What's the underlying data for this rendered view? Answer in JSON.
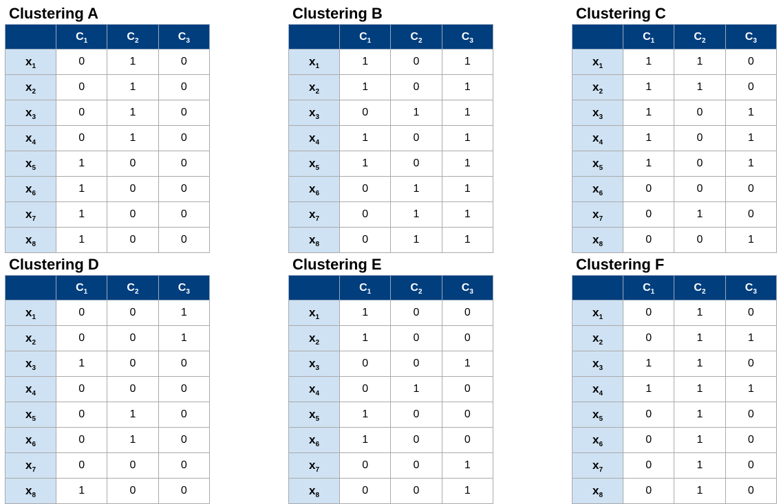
{
  "column_headers": [
    {
      "base": "C",
      "sub": "1"
    },
    {
      "base": "C",
      "sub": "2"
    },
    {
      "base": "C",
      "sub": "3"
    }
  ],
  "row_headers": [
    {
      "base": "x",
      "sub": "1"
    },
    {
      "base": "x",
      "sub": "2"
    },
    {
      "base": "x",
      "sub": "3"
    },
    {
      "base": "x",
      "sub": "4"
    },
    {
      "base": "x",
      "sub": "5"
    },
    {
      "base": "x",
      "sub": "6"
    },
    {
      "base": "x",
      "sub": "7"
    },
    {
      "base": "x",
      "sub": "8"
    }
  ],
  "colors": {
    "header_bg": "#003e7e",
    "row_header_bg": "#cfe2f3",
    "grid": "#a9a9a9"
  },
  "clusterings": [
    {
      "title": "Clustering A",
      "rows": [
        [
          "0",
          "1",
          "0"
        ],
        [
          "0",
          "1",
          "0"
        ],
        [
          "0",
          "1",
          "0"
        ],
        [
          "0",
          "1",
          "0"
        ],
        [
          "1",
          "0",
          "0"
        ],
        [
          "1",
          "0",
          "0"
        ],
        [
          "1",
          "0",
          "0"
        ],
        [
          "1",
          "0",
          "0"
        ]
      ]
    },
    {
      "title": "Clustering B",
      "rows": [
        [
          "1",
          "0",
          "1"
        ],
        [
          "1",
          "0",
          "1"
        ],
        [
          "0",
          "1",
          "1"
        ],
        [
          "1",
          "0",
          "1"
        ],
        [
          "1",
          "0",
          "1"
        ],
        [
          "0",
          "1",
          "1"
        ],
        [
          "0",
          "1",
          "1"
        ],
        [
          "0",
          "1",
          "1"
        ]
      ]
    },
    {
      "title": "Clustering C",
      "rows": [
        [
          "1",
          "1",
          "0"
        ],
        [
          "1",
          "1",
          "0"
        ],
        [
          "1",
          "0",
          "1"
        ],
        [
          "1",
          "0",
          "1"
        ],
        [
          "1",
          "0",
          "1"
        ],
        [
          "0",
          "0",
          "0"
        ],
        [
          "0",
          "1",
          "0"
        ],
        [
          "0",
          "0",
          "1"
        ]
      ]
    },
    {
      "title": "Clustering D",
      "rows": [
        [
          "0",
          "0",
          "1"
        ],
        [
          "0",
          "0",
          "1"
        ],
        [
          "1",
          "0",
          "0"
        ],
        [
          "0",
          "0",
          "0"
        ],
        [
          "0",
          "1",
          "0"
        ],
        [
          "0",
          "1",
          "0"
        ],
        [
          "0",
          "0",
          "0"
        ],
        [
          "1",
          "0",
          "0"
        ]
      ]
    },
    {
      "title": "Clustering E",
      "rows": [
        [
          "1",
          "0",
          "0"
        ],
        [
          "1",
          "0",
          "0"
        ],
        [
          "0",
          "0",
          "1"
        ],
        [
          "0",
          "1",
          "0"
        ],
        [
          "1",
          "0",
          "0"
        ],
        [
          "1",
          "0",
          "0"
        ],
        [
          "0",
          "0",
          "1"
        ],
        [
          "0",
          "0",
          "1"
        ]
      ]
    },
    {
      "title": "Clustering F",
      "rows": [
        [
          "0",
          "1",
          "0"
        ],
        [
          "0",
          "1",
          "1"
        ],
        [
          "1",
          "1",
          "0"
        ],
        [
          "1",
          "1",
          "1"
        ],
        [
          "0",
          "1",
          "0"
        ],
        [
          "0",
          "1",
          "0"
        ],
        [
          "0",
          "1",
          "0"
        ],
        [
          "0",
          "1",
          "0"
        ]
      ]
    }
  ]
}
